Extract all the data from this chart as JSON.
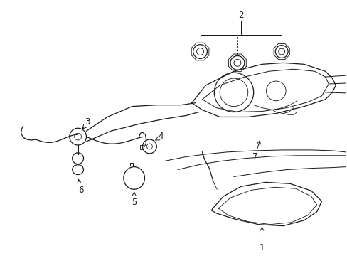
{
  "background_color": "#ffffff",
  "line_color": "#1a1a1a",
  "fig_width": 4.89,
  "fig_height": 3.6,
  "dpi": 100,
  "label_fontsize": 8.5
}
